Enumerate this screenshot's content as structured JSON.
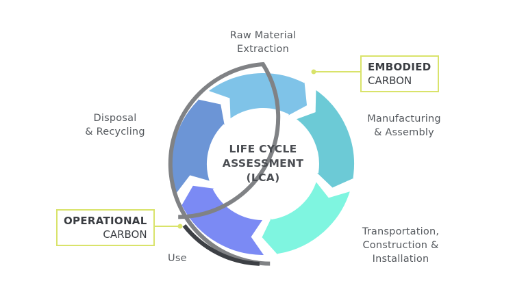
{
  "center": {
    "line1": "LIFE CYCLE",
    "line2": "ASSESSMENT",
    "line3": "(LCA)"
  },
  "stages": [
    {
      "line1": "Raw Material",
      "line2": "Extraction",
      "color": "#7fc3e8"
    },
    {
      "line1": "Manufacturing",
      "line2": "& Assembly",
      "color": "#6ccad6"
    },
    {
      "line1": "Transportation,",
      "line2": "Construction &",
      "line3": "Installation",
      "color": "#7ff5e0"
    },
    {
      "line1": "Use",
      "color": "#7b8af4"
    },
    {
      "line1": "Disposal",
      "line2": "& Recycling",
      "color": "#6c95d6"
    }
  ],
  "callouts": {
    "embodied": {
      "line1": "EMBODIED",
      "line2": "CARBON",
      "ring_color": "#808285"
    },
    "operational": {
      "line1": "OPERATIONAL",
      "line2": "CARBON",
      "ring_color": "#3d4045"
    },
    "accent": "#d9e36a"
  }
}
